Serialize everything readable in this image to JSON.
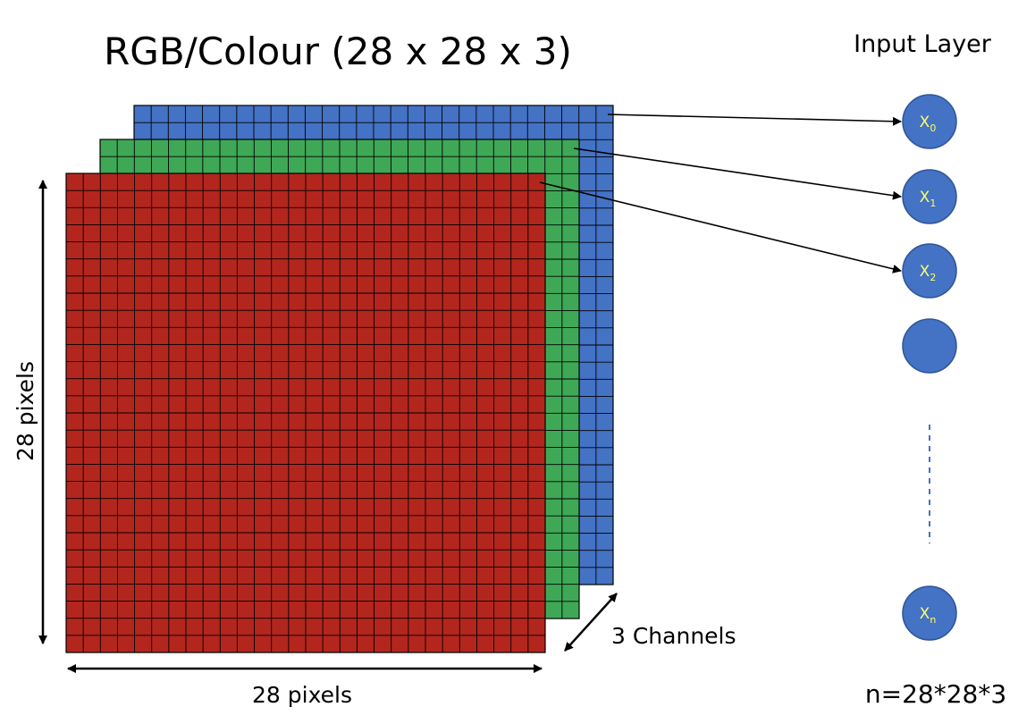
{
  "title": "RGB/Colour (28 x 28 x 3)",
  "input_layer_label": "Input Layer",
  "height_label": "28 pixels",
  "width_label": "28 pixels",
  "depth_label": "3 Channels",
  "formula": "n=28*28*3",
  "grid": {
    "rows": 28,
    "cols": 28
  },
  "channels": [
    {
      "name": "blue",
      "color": "#4472c4"
    },
    {
      "name": "green",
      "color": "#3fa856"
    },
    {
      "name": "red",
      "color": "#b3261e"
    }
  ],
  "nodes": [
    {
      "base": "X",
      "sub": "0",
      "link": "blue"
    },
    {
      "base": "X",
      "sub": "1",
      "link": "green"
    },
    {
      "base": "X",
      "sub": "2",
      "link": "red"
    },
    {
      "base": "",
      "sub": "",
      "link": null
    },
    {
      "base": "X",
      "sub": "n",
      "link": null
    }
  ],
  "colors": {
    "node_fill": "#4472c4",
    "node_stroke": "#2f5597",
    "node_label": "#ffff66",
    "ellipsis_line": "#4472c4",
    "grid_line": "#000000"
  }
}
